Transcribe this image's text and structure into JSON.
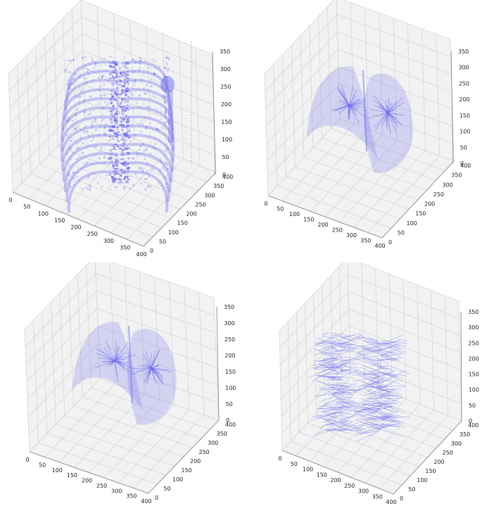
{
  "figure": {
    "colors": {
      "background": "#ffffff",
      "pane": "#f2f2f2",
      "grid": "#d6d6d6",
      "axis": "#888888",
      "volume": "#6a6af0"
    }
  },
  "chart_data": [
    {
      "type": "scatter",
      "projection": "3d",
      "content": "volumetric point cloud (rib cage and spine)",
      "title": "",
      "xlabel": "",
      "ylabel": "",
      "zlabel": "",
      "x_ticks": [
        "0",
        "50",
        "100",
        "150",
        "200",
        "250",
        "300",
        "350",
        "400"
      ],
      "y_ticks": [
        "0",
        "50",
        "100",
        "150",
        "200",
        "250",
        "300",
        "350",
        "400"
      ],
      "z_ticks": [
        "0",
        "50",
        "100",
        "150",
        "200",
        "250",
        "300",
        "350"
      ],
      "xlim": [
        0,
        400
      ],
      "ylim": [
        0,
        400
      ],
      "zlim": [
        0,
        350
      ],
      "grid": true,
      "color": "#6a6af0"
    },
    {
      "type": "scatter",
      "projection": "3d",
      "content": "volumetric point cloud (lungs with airway tree)",
      "title": "",
      "xlabel": "",
      "ylabel": "",
      "zlabel": "",
      "x_ticks": [
        "0",
        "50",
        "100",
        "150",
        "200",
        "250",
        "300",
        "350",
        "400"
      ],
      "y_ticks": [
        "0",
        "50",
        "100",
        "150",
        "200",
        "250",
        "300",
        "350",
        "400"
      ],
      "z_ticks": [
        "0",
        "50",
        "100",
        "150",
        "200",
        "250",
        "300",
        "350"
      ],
      "xlim": [
        0,
        400
      ],
      "ylim": [
        0,
        400
      ],
      "zlim": [
        0,
        350
      ],
      "grid": true,
      "color": "#6a6af0"
    },
    {
      "type": "scatter",
      "projection": "3d",
      "content": "volumetric point cloud (lungs with airway tree)",
      "title": "",
      "xlabel": "",
      "ylabel": "",
      "zlabel": "",
      "x_ticks": [
        "0",
        "50",
        "100",
        "150",
        "200",
        "250",
        "300",
        "350",
        "400"
      ],
      "y_ticks": [
        "0",
        "50",
        "100",
        "150",
        "200",
        "250",
        "300",
        "350",
        "400"
      ],
      "z_ticks": [
        "0",
        "50",
        "100",
        "150",
        "200",
        "250",
        "300",
        "350"
      ],
      "xlim": [
        0,
        400
      ],
      "ylim": [
        0,
        400
      ],
      "zlim": [
        0,
        350
      ],
      "grid": true,
      "color": "#6a6af0"
    },
    {
      "type": "scatter",
      "projection": "3d",
      "content": "volumetric point cloud (bronchial airway tree)",
      "title": "",
      "xlabel": "",
      "ylabel": "",
      "zlabel": "",
      "x_ticks": [
        "0",
        "50",
        "100",
        "150",
        "200",
        "250",
        "300",
        "350",
        "400"
      ],
      "y_ticks": [
        "0",
        "50",
        "100",
        "150",
        "200",
        "250",
        "300",
        "350",
        "400"
      ],
      "z_ticks": [
        "0",
        "50",
        "100",
        "150",
        "200",
        "250",
        "300",
        "350"
      ],
      "xlim": [
        0,
        400
      ],
      "ylim": [
        0,
        400
      ],
      "zlim": [
        0,
        350
      ],
      "grid": true,
      "color": "#6a6af0"
    }
  ]
}
